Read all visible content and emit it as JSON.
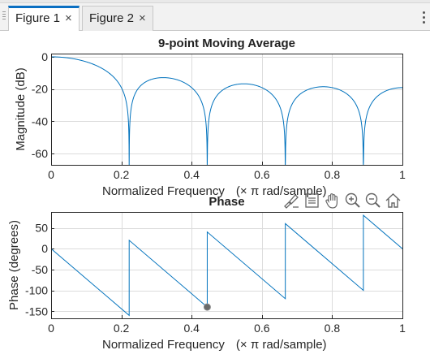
{
  "tabs": [
    {
      "label": "Figure 1",
      "close": "×",
      "active": true
    },
    {
      "label": "Figure 2",
      "close": "×",
      "active": false
    }
  ],
  "toolbar": {
    "icons": [
      "brush-icon",
      "legend-icon",
      "pan-icon",
      "zoom-in-icon",
      "zoom-out-icon",
      "home-icon"
    ]
  },
  "colors": {
    "line": "#0072bd",
    "accent": "#0a6fc2",
    "grid": "#dcdcdc"
  },
  "chart_data": [
    {
      "type": "line",
      "title": "9-point Moving Average",
      "xlabel_main": "Normalized  Frequency",
      "xlabel_unit": "(× π  rad/sample)",
      "ylabel": "Magnitude (dB)",
      "xlim": [
        0,
        1
      ],
      "ylim": [
        -67,
        2
      ],
      "xticks": [
        0,
        0.2,
        0.4,
        0.6,
        0.8,
        1
      ],
      "xtick_labels": [
        "0",
        "0.2",
        "0.4",
        "0.6",
        "0.8",
        "1"
      ],
      "yticks": [
        0,
        -20,
        -40,
        -60
      ],
      "ytick_labels": [
        "0",
        "-20",
        "-40",
        "-60"
      ],
      "grid": true,
      "series": [
        {
          "function": "20*log10(|sin(9*pi*x/2)/(9*sin(pi*x/2))|)",
          "x_range": [
            0,
            1
          ]
        }
      ]
    },
    {
      "type": "line",
      "title": "Phase",
      "xlabel_main": "Normalized  Frequency",
      "xlabel_unit": "(× π  rad/sample)",
      "ylabel": "Phase (degrees)",
      "xlim": [
        0,
        1
      ],
      "ylim": [
        -167,
        88
      ],
      "xticks": [
        0,
        0.2,
        0.4,
        0.6,
        0.8,
        1
      ],
      "xtick_labels": [
        "0",
        "0.2",
        "0.4",
        "0.6",
        "0.8",
        "1"
      ],
      "yticks": [
        50,
        0,
        -50,
        -100,
        -150
      ],
      "ytick_labels": [
        "50",
        "0",
        "-50",
        "-100",
        "-150"
      ],
      "grid": true,
      "series": [
        {
          "points": [
            [
              0,
              0
            ],
            [
              0.2222,
              -160
            ],
            [
              0.2222,
              20
            ],
            [
              0.4444,
              -140
            ],
            [
              0.4444,
              40
            ],
            [
              0.6667,
              -120
            ],
            [
              0.6667,
              60
            ],
            [
              0.8889,
              -100
            ],
            [
              0.8889,
              80
            ],
            [
              1,
              0
            ]
          ]
        }
      ],
      "marker": {
        "x": 0.4444,
        "y": -140
      }
    }
  ]
}
